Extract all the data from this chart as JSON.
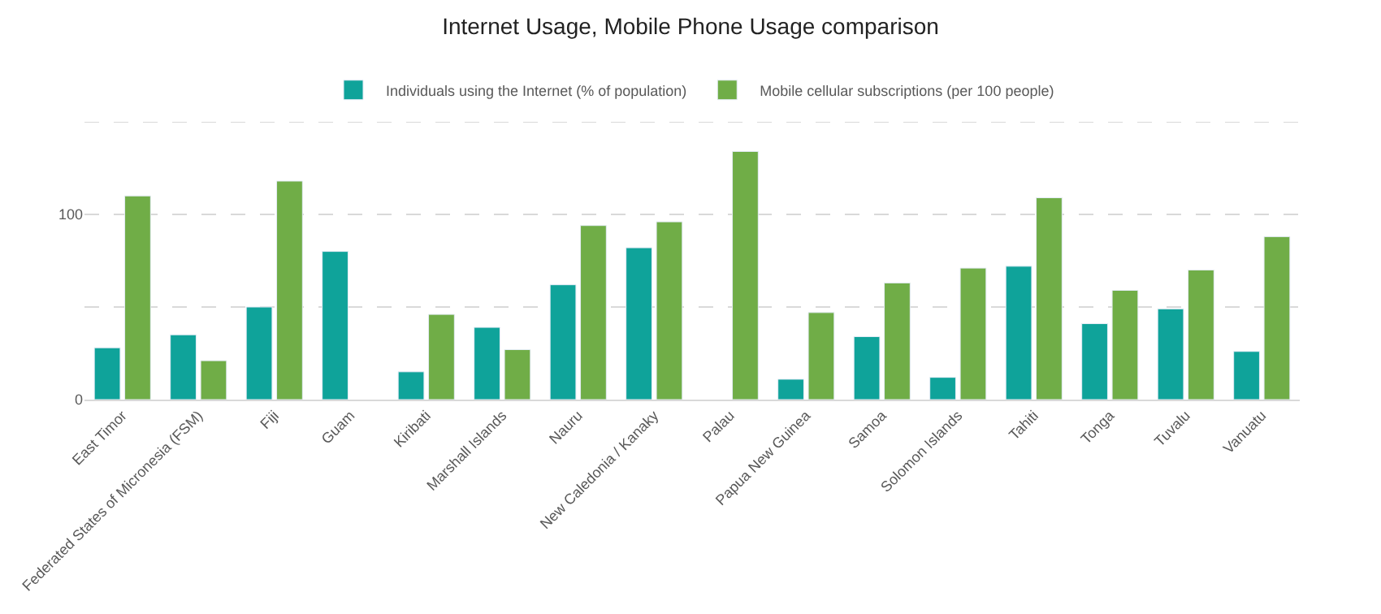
{
  "chart_data": {
    "type": "bar",
    "title": "Internet Usage, Mobile Phone Usage comparison",
    "categories": [
      "East Timor",
      "Federated States of Micronesia (FSM)",
      "Fiji",
      "Guam",
      "Kiribati",
      "Marshall Islands",
      "Nauru",
      "New Caledonia / Kanaky",
      "Palau",
      "Papua New Guinea",
      "Samoa",
      "Solomon Islands",
      "Tahiti",
      "Tonga",
      "Tuvalu",
      "Vanuatu"
    ],
    "series": [
      {
        "name": "Individuals using the Internet (% of population)",
        "color": "#0fa39a",
        "values": [
          28,
          35,
          50,
          80,
          15,
          39,
          62,
          82,
          null,
          11,
          34,
          12,
          72,
          41,
          49,
          26
        ]
      },
      {
        "name": "Mobile cellular subscriptions (per 100 people)",
        "color": "#70ad47",
        "values": [
          110,
          21,
          118,
          null,
          46,
          27,
          94,
          96,
          134,
          47,
          63,
          71,
          109,
          59,
          70,
          88
        ]
      }
    ],
    "ylim": [
      0,
      150
    ],
    "yticks": [
      0,
      {
        "value": 50,
        "label": null
      },
      100,
      {
        "value": 150,
        "label": null
      }
    ],
    "grid": "y",
    "legend": "top"
  }
}
